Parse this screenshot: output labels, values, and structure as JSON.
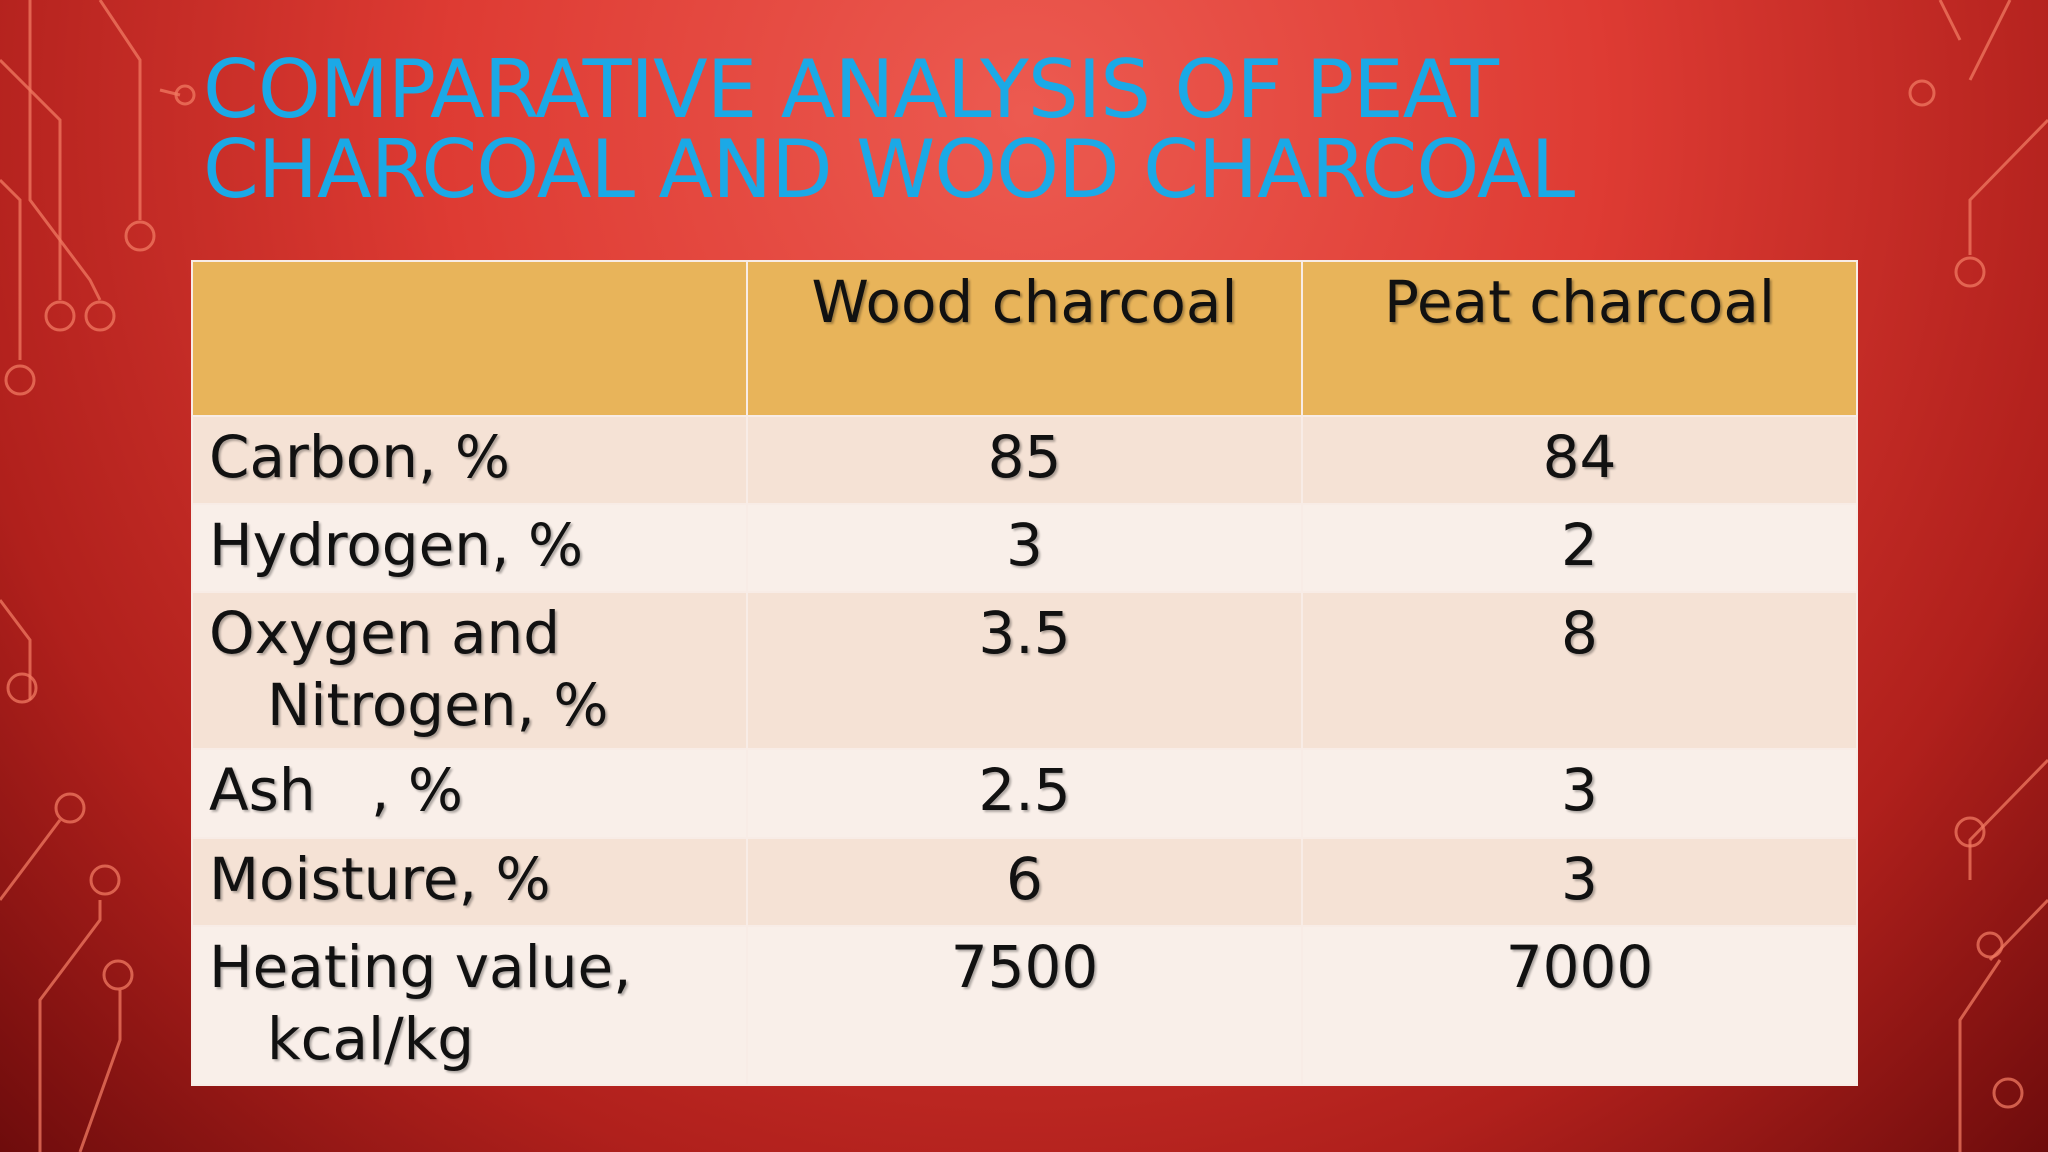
{
  "title": "Comparative analysis of Peat charcoal and Wood charcoal",
  "table": {
    "header": [
      "Wood charcoal",
      "Peat charcoal"
    ],
    "rows": [
      [
        "Carbon, %",
        85,
        84
      ],
      [
        "Hydrogen, %",
        3,
        2
      ],
      [
        "Oxygen and Nitrogen, %",
        3.5,
        8
      ],
      [
        "Ash   , %",
        2.5,
        3
      ],
      [
        "Moisture, %",
        6,
        3
      ],
      [
        "Heating value, kcal/kg",
        7500,
        7000
      ]
    ]
  }
}
